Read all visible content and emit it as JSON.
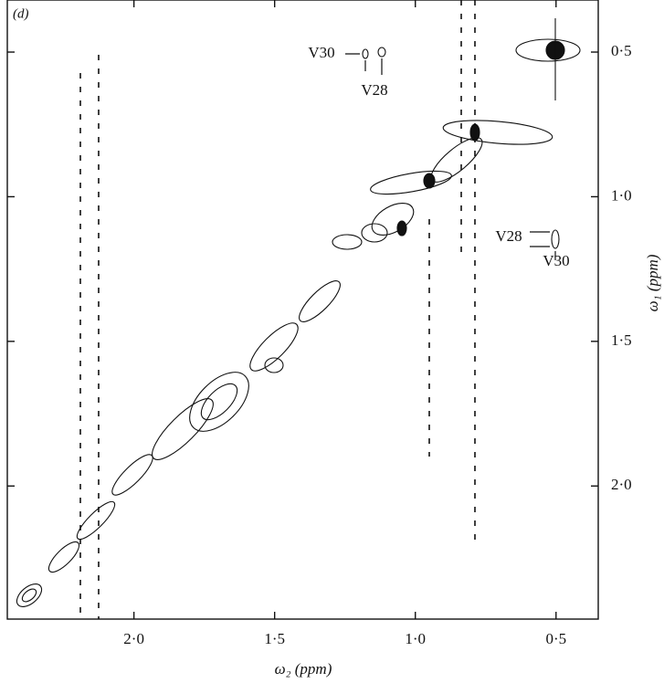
{
  "chart_data": {
    "type": "contour",
    "panel_label": "(d)",
    "x_label": "ω₂ (ppm)",
    "y_label": "ω₁ (ppm)",
    "xlim": [
      2.45,
      0.35
    ],
    "ylim": [
      0.32,
      2.46
    ],
    "xticks": [
      {
        "value": 2,
        "label": "2·0"
      },
      {
        "value": 1.5,
        "label": "1·5"
      },
      {
        "value": 1,
        "label": "1·0"
      },
      {
        "value": 0.5,
        "label": "0·5"
      }
    ],
    "yticks": [
      {
        "value": 0.5,
        "label": "0·5"
      },
      {
        "value": 1,
        "label": "1·0"
      },
      {
        "value": 1.5,
        "label": "1·5"
      },
      {
        "value": 2,
        "label": "2·0"
      }
    ],
    "annotations": [
      "V30",
      "V28",
      "V28",
      "V30"
    ]
  }
}
